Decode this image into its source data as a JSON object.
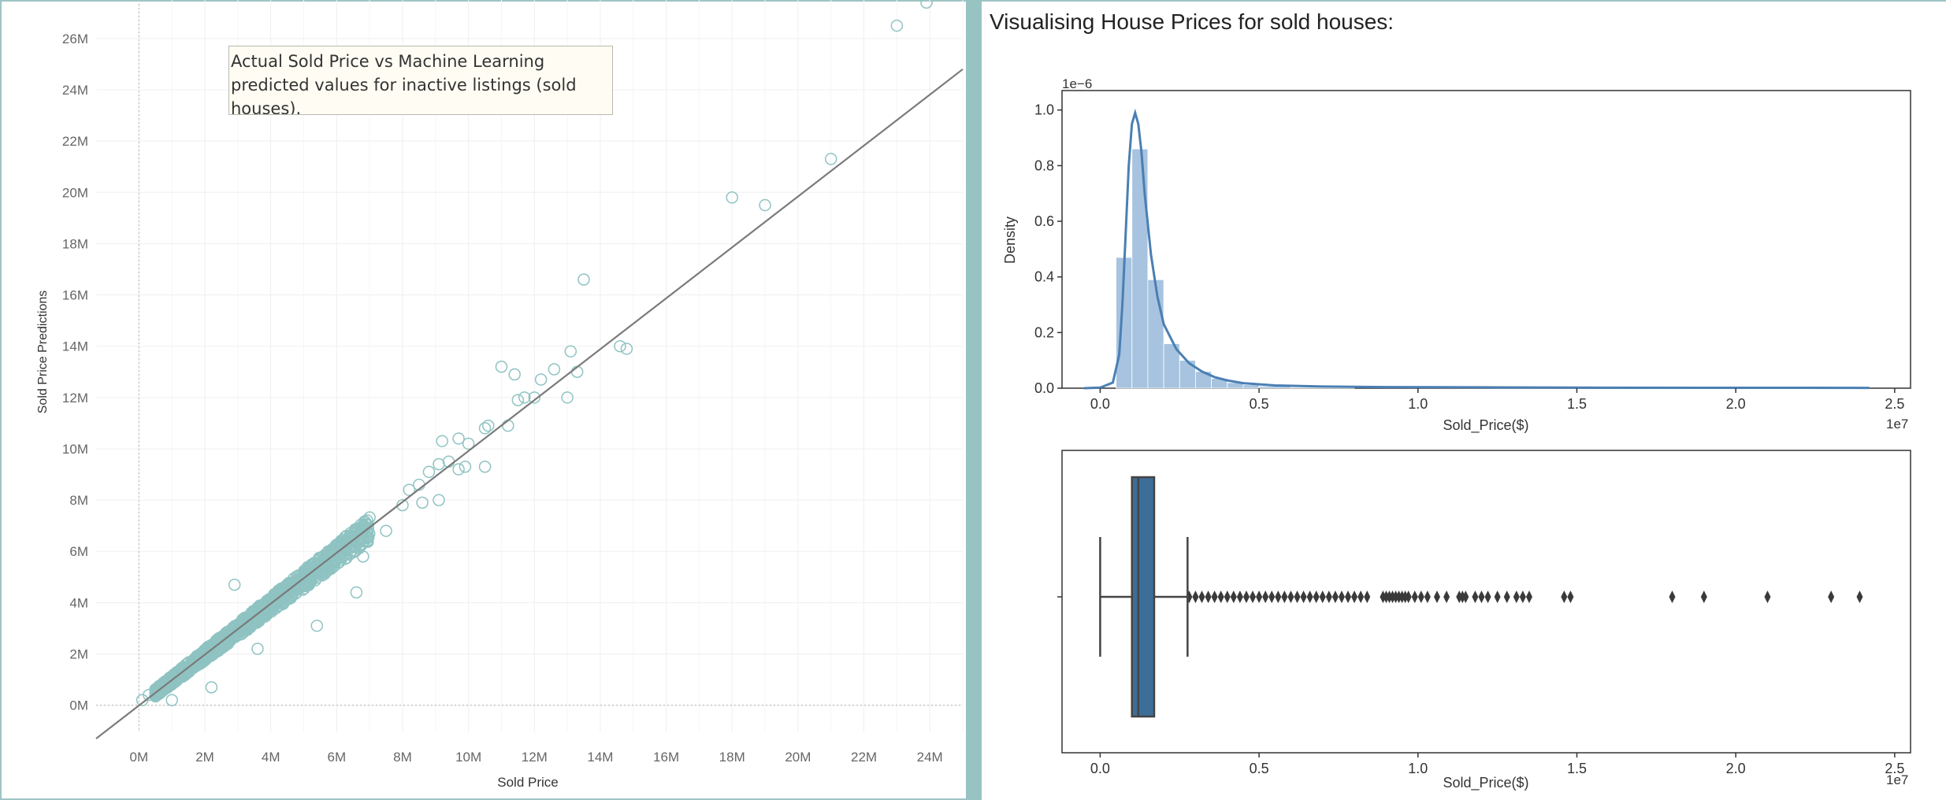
{
  "dashboard": {
    "title": "Visualising House Prices for sold houses:"
  },
  "colors": {
    "scatter_marker": "#8fc3c2",
    "reference_line": "#7a7a7a",
    "hist_fill": "#a7c3df",
    "kde_line": "#4a7fb3",
    "box_fill": "#3c6e98",
    "divider": "#98c3c3"
  },
  "chart_data": [
    {
      "type": "scatter",
      "title": "",
      "annotation": "Actual Sold Price vs Machine Learning predicted values for inactive listings (sold houses).",
      "xlabel": "Sold Price",
      "ylabel": "Sold Price Predictions",
      "xlim": [
        -1.3,
        25
      ],
      "ylim": [
        -1.3,
        27.5
      ],
      "x_ticks": [
        "0M",
        "2M",
        "4M",
        "6M",
        "8M",
        "10M",
        "12M",
        "14M",
        "16M",
        "18M",
        "20M",
        "22M",
        "24M"
      ],
      "x_tick_values": [
        0,
        2,
        4,
        6,
        8,
        10,
        12,
        14,
        16,
        18,
        20,
        22,
        24
      ],
      "y_ticks": [
        "0M",
        "2M",
        "4M",
        "6M",
        "8M",
        "10M",
        "12M",
        "14M",
        "16M",
        "18M",
        "20M",
        "22M",
        "24M",
        "26M"
      ],
      "y_tick_values": [
        0,
        2,
        4,
        6,
        8,
        10,
        12,
        14,
        16,
        18,
        20,
        22,
        24,
        26
      ],
      "units": "millions ($)",
      "reference_line": [
        [
          -1.3,
          -1.3
        ],
        [
          25,
          24.8
        ]
      ],
      "grid": true,
      "points": [
        [
          0.1,
          0.2
        ],
        [
          0.3,
          0.4
        ],
        [
          1.0,
          0.2
        ],
        [
          2.2,
          0.7
        ],
        [
          2.9,
          4.7
        ],
        [
          6.6,
          4.4
        ],
        [
          3.6,
          2.2
        ],
        [
          5.4,
          3.1
        ],
        [
          6.8,
          5.8
        ],
        [
          7.5,
          6.8
        ],
        [
          8.0,
          7.8
        ],
        [
          8.6,
          7.9
        ],
        [
          9.1,
          8.0
        ],
        [
          8.2,
          8.4
        ],
        [
          8.5,
          8.6
        ],
        [
          8.8,
          9.1
        ],
        [
          9.1,
          9.4
        ],
        [
          9.4,
          9.5
        ],
        [
          9.7,
          9.2
        ],
        [
          9.9,
          9.3
        ],
        [
          9.2,
          10.3
        ],
        [
          9.7,
          10.4
        ],
        [
          10.0,
          10.2
        ],
        [
          10.5,
          10.8
        ],
        [
          10.6,
          10.9
        ],
        [
          11.2,
          10.9
        ],
        [
          10.5,
          9.3
        ],
        [
          11.0,
          13.2
        ],
        [
          11.4,
          12.9
        ],
        [
          11.5,
          11.9
        ],
        [
          11.7,
          12.0
        ],
        [
          12.0,
          12.0
        ],
        [
          12.2,
          12.7
        ],
        [
          12.6,
          13.1
        ],
        [
          13.0,
          12.0
        ],
        [
          13.1,
          13.8
        ],
        [
          13.3,
          13.0
        ],
        [
          13.5,
          16.6
        ],
        [
          14.6,
          14.0
        ],
        [
          14.8,
          13.9
        ],
        [
          18.0,
          19.8
        ],
        [
          19.0,
          19.5
        ],
        [
          21.0,
          21.3
        ],
        [
          23.0,
          26.5
        ],
        [
          23.9,
          27.4
        ]
      ],
      "dense_band": {
        "x_range": [
          0.5,
          7.0
        ],
        "note": "heavy overplotting of points along the diagonal"
      }
    },
    {
      "type": "histogram",
      "title": "",
      "xlabel": "Sold_Price($)",
      "ylabel": "Density",
      "x_offset_label": "1e7",
      "y_offset_label": "1e−6",
      "xlim": [
        -0.12,
        2.55
      ],
      "ylim": [
        0,
        1.07
      ],
      "x_ticks": [
        "0.0",
        "0.5",
        "1.0",
        "1.5",
        "2.0",
        "2.5"
      ],
      "x_tick_values": [
        0.0,
        0.5,
        1.0,
        1.5,
        2.0,
        2.5
      ],
      "y_ticks": [
        "0.0",
        "0.2",
        "0.4",
        "0.6",
        "0.8",
        "1.0"
      ],
      "y_tick_values": [
        0.0,
        0.2,
        0.4,
        0.6,
        0.8,
        1.0
      ],
      "bins": [
        {
          "x0": 0.05,
          "x1": 0.1,
          "density": 0.47
        },
        {
          "x0": 0.1,
          "x1": 0.15,
          "density": 0.86
        },
        {
          "x0": 0.15,
          "x1": 0.2,
          "density": 0.39
        },
        {
          "x0": 0.2,
          "x1": 0.25,
          "density": 0.16
        },
        {
          "x0": 0.25,
          "x1": 0.3,
          "density": 0.1
        },
        {
          "x0": 0.3,
          "x1": 0.35,
          "density": 0.06
        },
        {
          "x0": 0.35,
          "x1": 0.4,
          "density": 0.035
        },
        {
          "x0": 0.4,
          "x1": 0.45,
          "density": 0.02
        },
        {
          "x0": 0.45,
          "x1": 0.5,
          "density": 0.012
        },
        {
          "x0": 0.5,
          "x1": 0.6,
          "density": 0.007
        },
        {
          "x0": 0.6,
          "x1": 0.8,
          "density": 0.003
        }
      ],
      "kde": [
        [
          -0.05,
          0.0
        ],
        [
          0.0,
          0.002
        ],
        [
          0.04,
          0.02
        ],
        [
          0.06,
          0.12
        ],
        [
          0.07,
          0.3
        ],
        [
          0.08,
          0.55
        ],
        [
          0.09,
          0.8
        ],
        [
          0.1,
          0.95
        ],
        [
          0.11,
          0.99
        ],
        [
          0.12,
          0.95
        ],
        [
          0.13,
          0.85
        ],
        [
          0.14,
          0.7
        ],
        [
          0.16,
          0.48
        ],
        [
          0.18,
          0.33
        ],
        [
          0.2,
          0.23
        ],
        [
          0.24,
          0.14
        ],
        [
          0.28,
          0.09
        ],
        [
          0.32,
          0.06
        ],
        [
          0.36,
          0.04
        ],
        [
          0.4,
          0.028
        ],
        [
          0.45,
          0.018
        ],
        [
          0.55,
          0.01
        ],
        [
          0.7,
          0.006
        ],
        [
          0.9,
          0.004
        ],
        [
          1.2,
          0.003
        ],
        [
          1.5,
          0.002
        ],
        [
          2.0,
          0.0015
        ],
        [
          2.42,
          0.001
        ]
      ]
    },
    {
      "type": "box",
      "title": "",
      "xlabel": "Sold_Price($)",
      "x_offset_label": "1e7",
      "xlim": [
        -0.12,
        2.55
      ],
      "x_ticks": [
        "0.0",
        "0.5",
        "1.0",
        "1.5",
        "2.0",
        "2.5"
      ],
      "x_tick_values": [
        0.0,
        0.5,
        1.0,
        1.5,
        2.0,
        2.5
      ],
      "whisker_low": 0.0,
      "q1": 0.1,
      "median": 0.12,
      "q3": 0.17,
      "whisker_high": 0.275,
      "outliers": [
        0.28,
        0.3,
        0.32,
        0.34,
        0.36,
        0.38,
        0.4,
        0.42,
        0.44,
        0.46,
        0.48,
        0.5,
        0.52,
        0.54,
        0.56,
        0.58,
        0.6,
        0.62,
        0.64,
        0.66,
        0.68,
        0.7,
        0.72,
        0.74,
        0.76,
        0.78,
        0.8,
        0.82,
        0.84,
        0.89,
        0.9,
        0.91,
        0.92,
        0.93,
        0.94,
        0.95,
        0.96,
        0.97,
        0.99,
        1.01,
        1.03,
        1.06,
        1.09,
        1.13,
        1.14,
        1.15,
        1.18,
        1.2,
        1.22,
        1.25,
        1.28,
        1.31,
        1.33,
        1.35,
        1.46,
        1.48,
        1.8,
        1.9,
        2.1,
        2.3,
        2.39
      ]
    }
  ]
}
